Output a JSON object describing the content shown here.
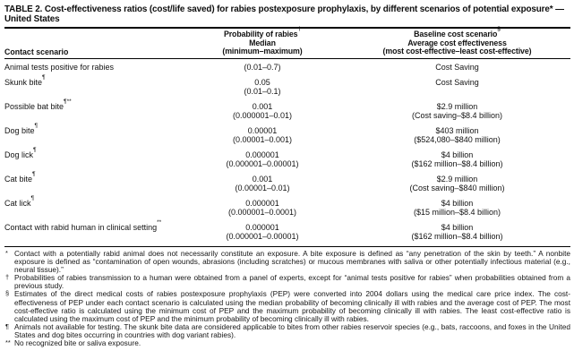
{
  "title": "TABLE 2. Cost-effectiveness ratios (cost/life saved) for rabies postexposure prophylaxis, by different scenarios of potential exposure* — United States",
  "header": {
    "col1": "Contact scenario",
    "col2": {
      "line1": "Probability of rabies",
      "line1_marker": "†",
      "line2": "Median",
      "line3": "(minimum–maximum)"
    },
    "col3": {
      "line1": "Baseline cost scenario",
      "line1_marker": "§",
      "line2": "Average cost effectiveness",
      "line3": "(most cost-effective–least cost-effective)"
    }
  },
  "rows": [
    {
      "scenario": "Animal tests positive for rabies",
      "marker": "",
      "prob_line1": "(0.01–0.7)",
      "prob_line2": "",
      "cost_line1": "Cost Saving",
      "cost_line2": ""
    },
    {
      "scenario": "Skunk bite",
      "marker": "¶",
      "prob_line1": "0.05",
      "prob_line2": "(0.01–0.1)",
      "cost_line1": "Cost Saving",
      "cost_line2": ""
    },
    {
      "scenario": "Possible bat bite",
      "marker": "¶**",
      "prob_line1": "0.001",
      "prob_line2": "(0.000001–0.01)",
      "cost_line1": "$2.9 million",
      "cost_line2": "(Cost saving–$8.4 billion)"
    },
    {
      "scenario": "Dog bite",
      "marker": "¶",
      "prob_line1": "0.00001",
      "prob_line2": "(0.00001–0.001)",
      "cost_line1": "$403 million",
      "cost_line2": "($524,080–$840 million)"
    },
    {
      "scenario": "Dog lick",
      "marker": "¶",
      "prob_line1": "0.000001",
      "prob_line2": "(0.000001–0.00001)",
      "cost_line1": "$4 billion",
      "cost_line2": "($162 million–$8.4 billion)"
    },
    {
      "scenario": "Cat bite",
      "marker": "¶",
      "prob_line1": "0.001",
      "prob_line2": "(0.00001–0.01)",
      "cost_line1": "$2.9 million",
      "cost_line2": "(Cost saving–$840 million)"
    },
    {
      "scenario": "Cat lick",
      "marker": "¶",
      "prob_line1": "0.000001",
      "prob_line2": "(0.000001–0.0001)",
      "cost_line1": "$4 billion",
      "cost_line2": "($15 million–$8.4 billion)"
    },
    {
      "scenario": "Contact with rabid human in clinical setting",
      "marker": "**",
      "prob_line1": "0.000001",
      "prob_line2": "(0.000001–0.00001)",
      "cost_line1": "$4 billion",
      "cost_line2": "($162 million–$8.4 billion)"
    }
  ],
  "footnotes": [
    {
      "marker": "*",
      "text": "Contact with a potentially rabid animal does not necessarily constitute an exposure. A bite exposure is defined as “any penetration of the skin by teeth.” A nonbite exposure is defined as “contamination of open wounds, abrasions (including scratches) or mucous membranes with saliva or other potentially infectious material (e.g., neural tissue).”"
    },
    {
      "marker": "†",
      "text": "Probabilities of rabies transmission to a human were obtained from a panel of experts, except for “animal tests positive for rabies” when probabilities obtained from a previous study."
    },
    {
      "marker": "§",
      "text": "Estimates of the direct medical costs of rabies postexposure prophylaxis (PEP) were converted into 2004 dollars using the medical care price index. The cost-effectiveness of PEP under each contact scenario is calculated using the median probability of becoming clinically ill with rabies and the average cost of PEP. The most cost-effective ratio is calculated using the minimum cost of PEP and the maximum probability of becoming clinically ill with rabies. The least cost-effective ratio is calculated using the maximum cost of PEP and the minimum probability of becoming clinically ill with rabies."
    },
    {
      "marker": "¶",
      "text": "Animals not available for testing. The skunk bite data are considered applicable to bites from other rabies reservoir species (e.g., bats, raccoons, and foxes in the United States and dog bites occurring in countries with dog variant rabies)."
    },
    {
      "marker": "**",
      "text": "No recognized bite or saliva exposure."
    }
  ],
  "colors": {
    "background": "#ffffff",
    "text": "#121212",
    "rule": "#000000"
  }
}
